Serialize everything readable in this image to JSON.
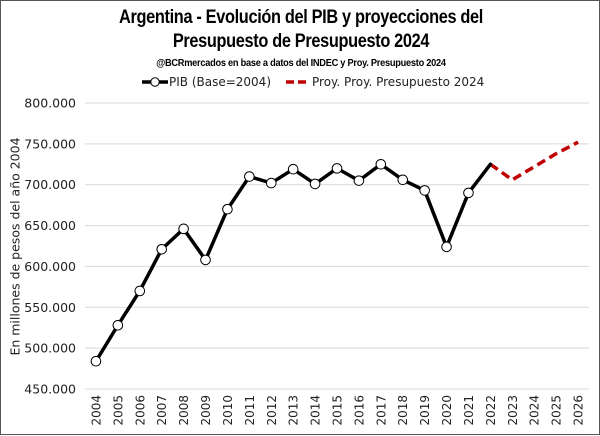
{
  "chart_data": {
    "type": "line",
    "title_line1": "Argentina - Evolución del PIB y proyecciones del",
    "title_line2": "Presupuesto de Presupuesto 2024",
    "subtitle": "@BCRmercados en base a datos del INDEC y Proy. Presupuesto 2024",
    "xlabel": "",
    "ylabel": "En millones de pesos del año 2004",
    "ylim": [
      450000,
      800000
    ],
    "yticks": [
      450000,
      500000,
      550000,
      600000,
      650000,
      700000,
      750000,
      800000
    ],
    "ytick_labels": [
      "450.000",
      "500.000",
      "550.000",
      "600.000",
      "650.000",
      "700.000",
      "750.000",
      "800.000"
    ],
    "grid": "horizontal",
    "legend_position": "top",
    "categories": [
      "2004",
      "2005",
      "2006",
      "2007",
      "2008",
      "2009",
      "2010",
      "2011",
      "2012",
      "2013",
      "2014",
      "2015",
      "2016",
      "2017",
      "2018",
      "2019",
      "2020",
      "2021",
      "2022",
      "2023",
      "2024",
      "2025",
      "2026"
    ],
    "series": [
      {
        "name": "PIB (Base=2004)",
        "color": "#000000",
        "style": "solid-with-circle-markers",
        "x": [
          "2004",
          "2005",
          "2006",
          "2007",
          "2008",
          "2009",
          "2010",
          "2011",
          "2012",
          "2013",
          "2014",
          "2015",
          "2016",
          "2017",
          "2018",
          "2019",
          "2020",
          "2021",
          "2022"
        ],
        "values": [
          484000,
          528000,
          570000,
          621000,
          646000,
          608000,
          670000,
          710000,
          702000,
          719000,
          701000,
          720000,
          705000,
          725000,
          706000,
          693000,
          624000,
          690000,
          725000
        ],
        "markers_on": 18
      },
      {
        "name": "Proy. Proy. Presupuesto 2024",
        "color": "#C00000",
        "style": "dashed",
        "x": [
          "2022",
          "2023",
          "2024",
          "2025",
          "2026"
        ],
        "values": [
          725000,
          706000,
          722000,
          738000,
          752000
        ]
      }
    ]
  }
}
